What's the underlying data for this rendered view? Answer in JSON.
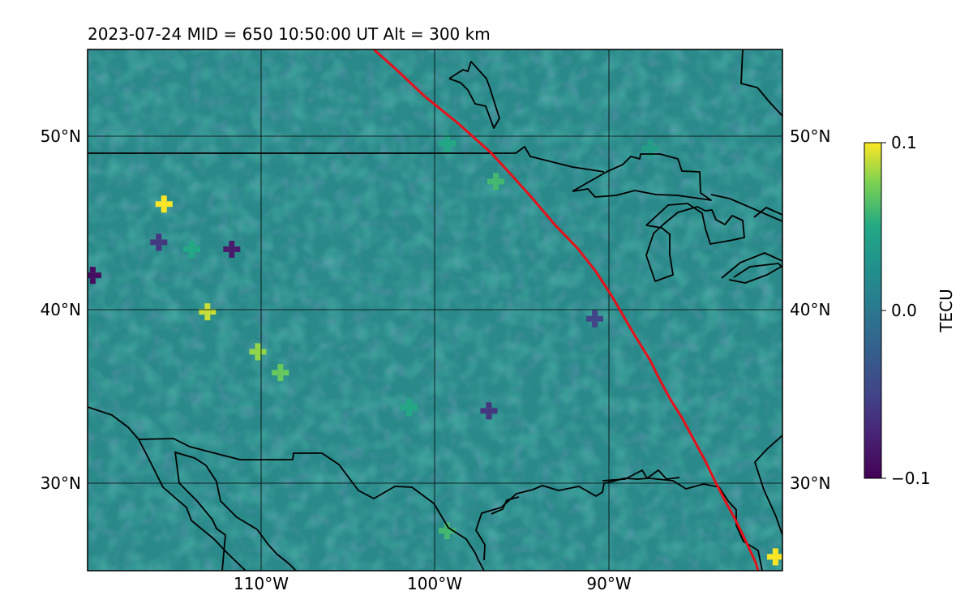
{
  "title": "2023-07-24  MID = 650    10:50:00  UT  Alt = 300 km",
  "map": {
    "lon_range": [
      -120,
      -80
    ],
    "lat_range": [
      25,
      55
    ],
    "lat_ticks": [
      {
        "value": 50,
        "label": "50°N"
      },
      {
        "value": 40,
        "label": "40°N"
      },
      {
        "value": 30,
        "label": "30°N"
      }
    ],
    "lon_ticks": [
      {
        "value": -110,
        "label": "110°W"
      },
      {
        "value": -100,
        "label": "100°W"
      },
      {
        "value": -90,
        "label": "90°W"
      }
    ],
    "grid": true,
    "terminator_color": "#e8101a",
    "coastline_color": "#000000",
    "background_color": "#2a8a8a"
  },
  "colorbar": {
    "label": "TECU",
    "colormap": "viridis",
    "min": -0.1,
    "max": 0.1,
    "ticks": [
      {
        "value": 0.1,
        "label": "0.1"
      },
      {
        "value": 0.0,
        "label": "0.0"
      },
      {
        "value": -0.1,
        "label": "−0.1"
      }
    ]
  },
  "anomalies": [
    {
      "lon": -115.6,
      "lat": 46.1,
      "value": 0.1
    },
    {
      "lon": -113.1,
      "lat": 39.9,
      "value": 0.09
    },
    {
      "lon": -110.2,
      "lat": 37.6,
      "value": 0.08
    },
    {
      "lon": -108.9,
      "lat": 36.4,
      "value": 0.07
    },
    {
      "lon": -114.0,
      "lat": 43.5,
      "value": 0.05
    },
    {
      "lon": -119.7,
      "lat": 42.0,
      "value": -0.09
    },
    {
      "lon": -111.7,
      "lat": 43.5,
      "value": -0.08
    },
    {
      "lon": -115.9,
      "lat": 43.9,
      "value": -0.06
    },
    {
      "lon": -99.3,
      "lat": 49.6,
      "value": 0.05
    },
    {
      "lon": -96.5,
      "lat": 47.4,
      "value": 0.06
    },
    {
      "lon": -87.6,
      "lat": 49.3,
      "value": 0.04
    },
    {
      "lon": -80.4,
      "lat": 25.8,
      "value": 0.1
    },
    {
      "lon": -99.3,
      "lat": 27.3,
      "value": 0.06
    },
    {
      "lon": -101.5,
      "lat": 34.4,
      "value": 0.05
    },
    {
      "lon": -96.9,
      "lat": 34.2,
      "value": -0.06
    },
    {
      "lon": -90.8,
      "lat": 39.5,
      "value": -0.05
    }
  ]
}
